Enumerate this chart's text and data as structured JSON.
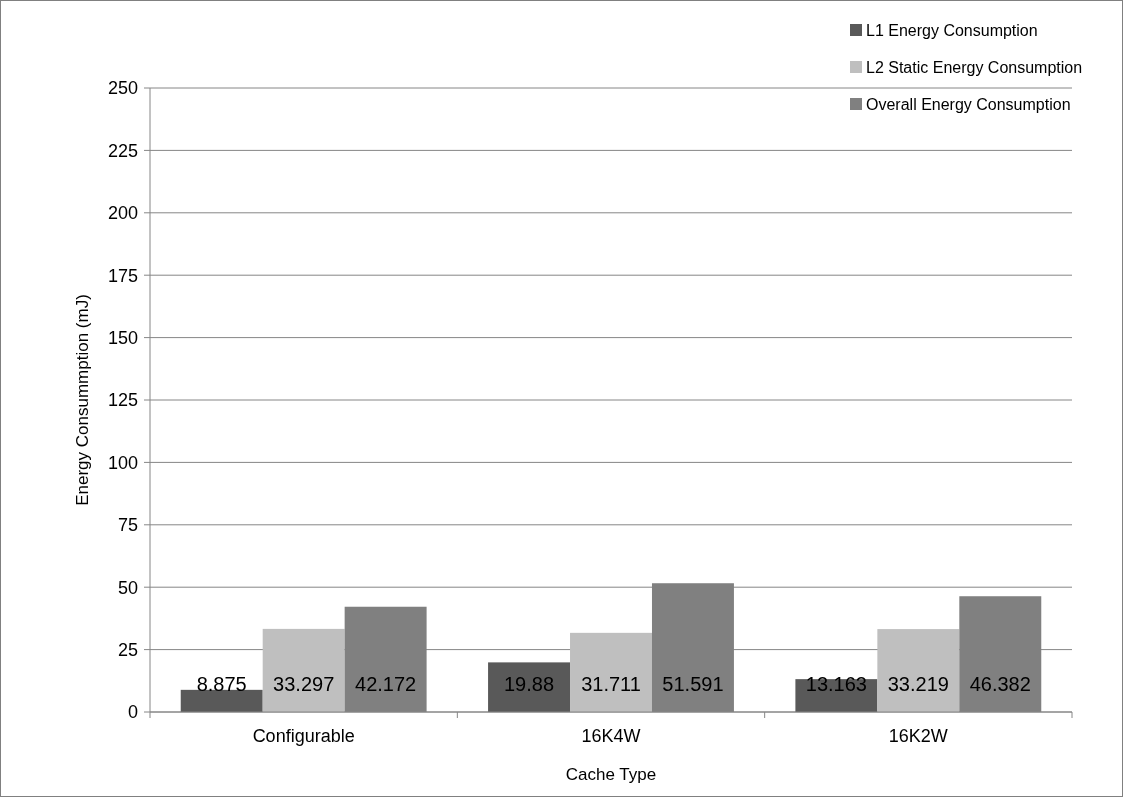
{
  "chart_data": {
    "type": "bar",
    "xlabel": "Cache Type",
    "ylabel": "Energy Consummption (mJ)",
    "categories": [
      "Configurable",
      "16K4W",
      "16K2W"
    ],
    "series": [
      {
        "name": "L1 Energy Consumption",
        "color": "#595959",
        "values": [
          8.875,
          19.88,
          13.163
        ]
      },
      {
        "name": "L2 Static Energy Consumption",
        "color": "#bfbfbf",
        "values": [
          33.297,
          31.711,
          33.219
        ]
      },
      {
        "name": "Overall Energy Consumption",
        "color": "#808080",
        "values": [
          42.172,
          51.591,
          46.382
        ]
      }
    ],
    "ylim": [
      0,
      250
    ],
    "yticks": [
      0,
      25,
      50,
      75,
      100,
      125,
      150,
      175,
      200,
      225,
      250
    ],
    "grid": "y",
    "legend": "top right",
    "data_labels": true
  }
}
